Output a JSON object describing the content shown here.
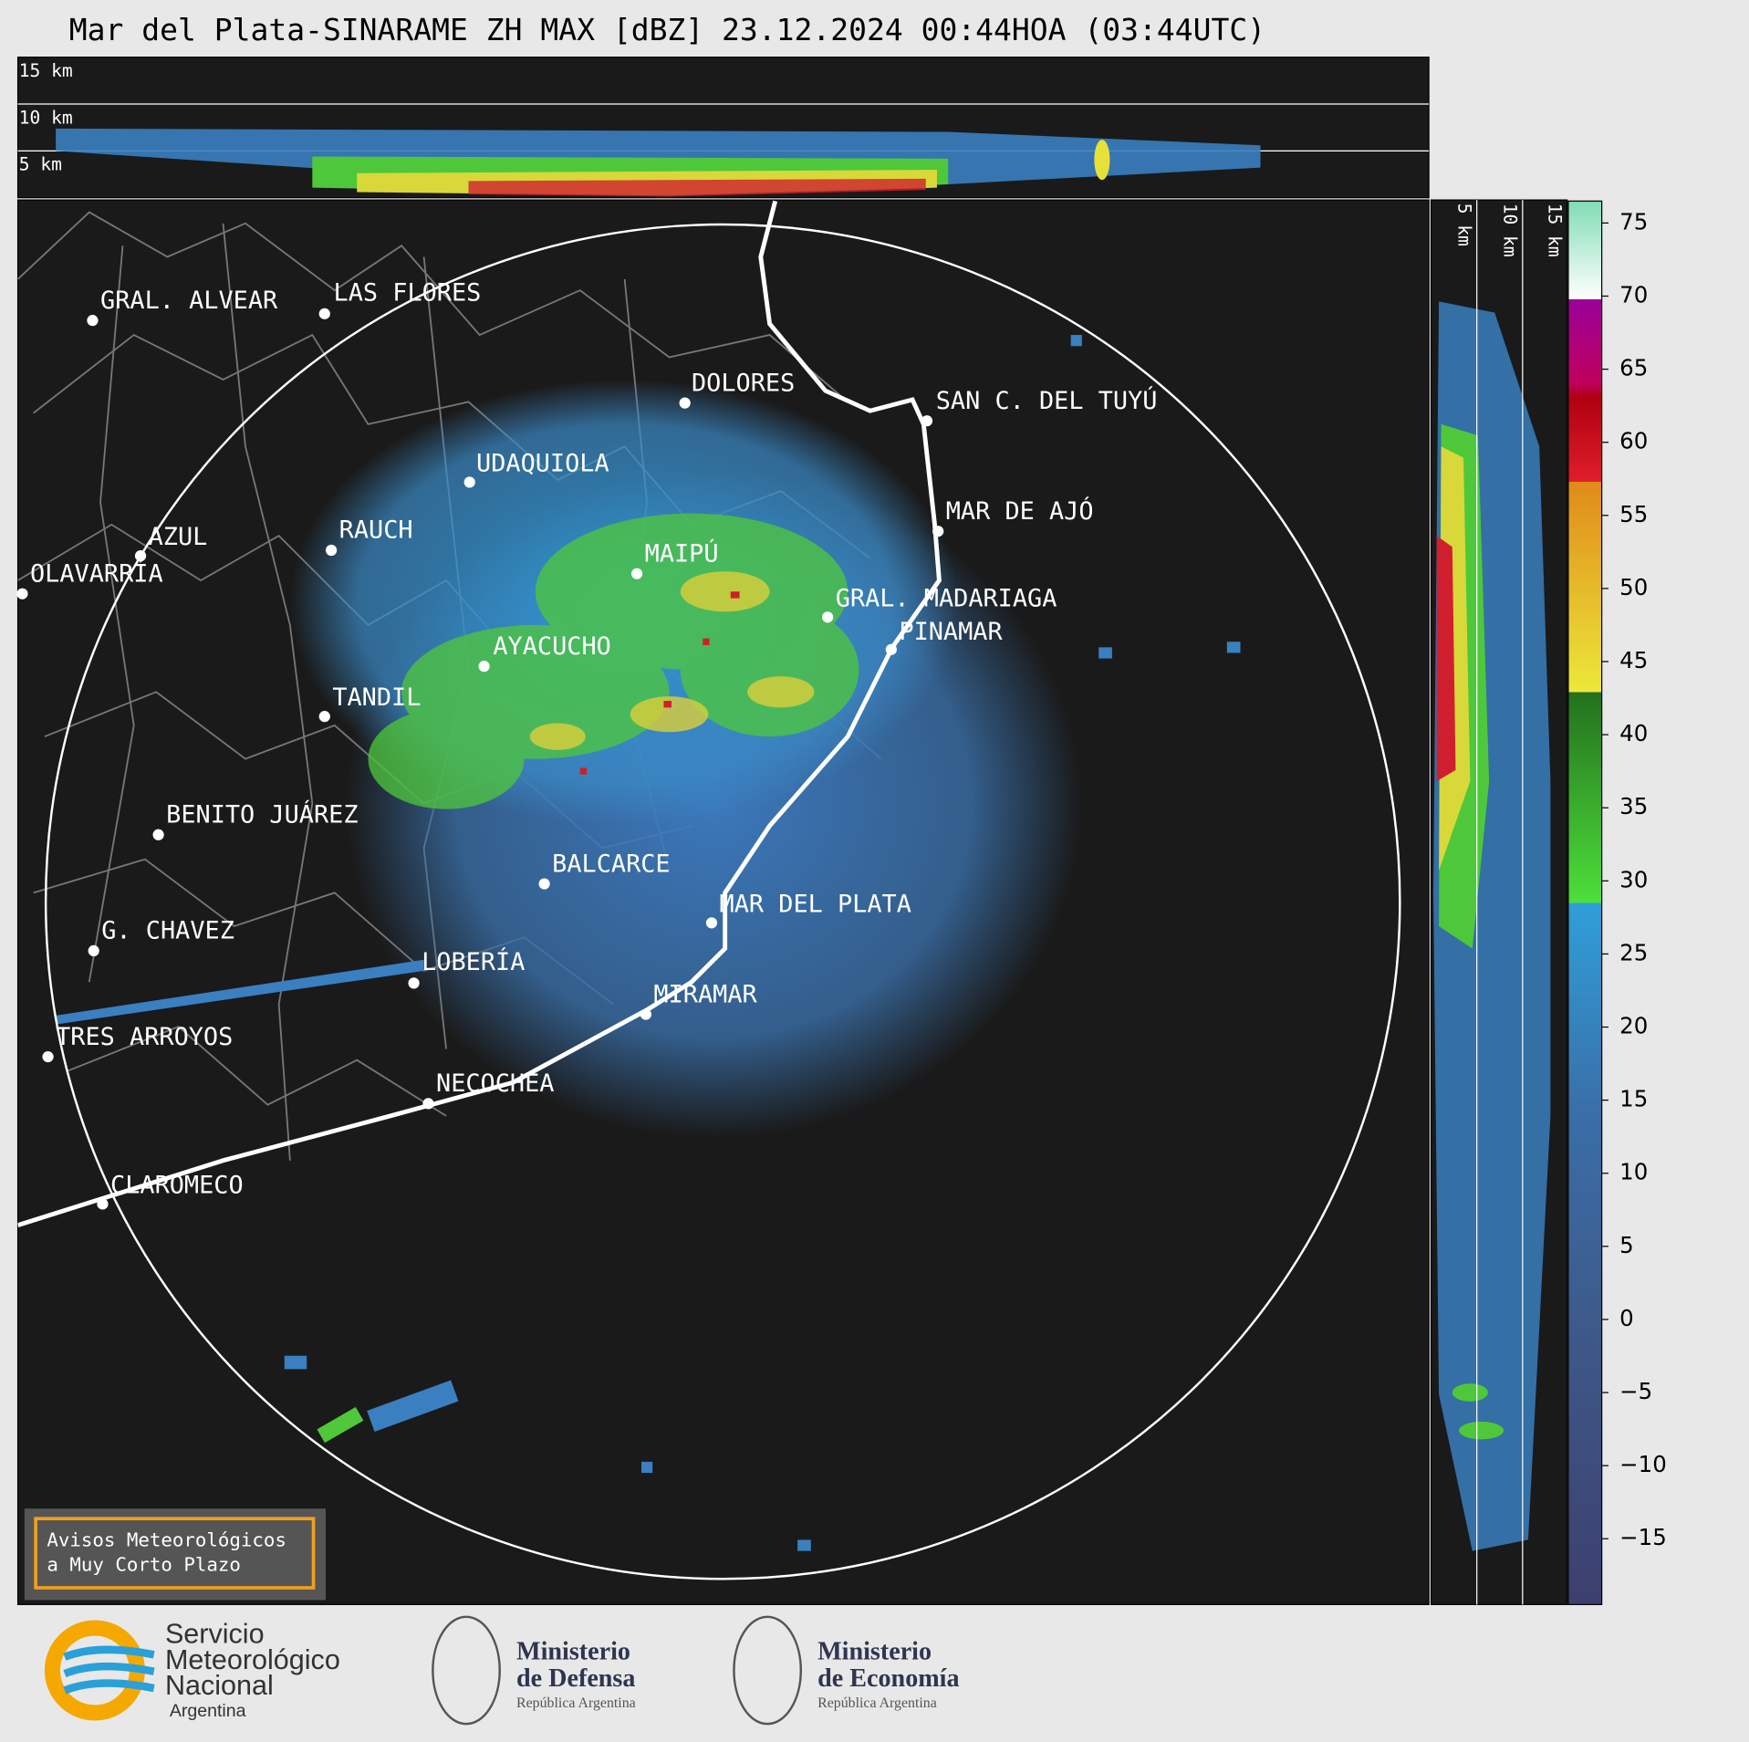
{
  "title": "Mar del Plata-SINARAME ZH MAX [dBZ] 23.12.2024 00:44HOA (03:44UTC)",
  "top_height_labels": [
    "15 km",
    "10 km",
    "5 km"
  ],
  "side_height_labels": [
    "5 km",
    "10 km",
    "15 km"
  ],
  "cities": [
    "GRAL. ALVEAR",
    "LAS FLORES",
    "DOLORES",
    "SAN C. DEL TUYÚ",
    "UDAQUIOLA",
    "MAR DE AJÓ",
    "AZUL",
    "RAUCH",
    "MAIPÚ",
    "OLAVARRÍA",
    "GRAL. MADARIAGA",
    "PINAMAR",
    "AYACUCHO",
    "TANDIL",
    "BENITO JUÁREZ",
    "BALCARCE",
    "MAR DEL PLATA",
    "G. CHAVEZ",
    "LOBERÍA",
    "MIRAMAR",
    "TRES ARROYOS",
    "NECOCHEA",
    "CLAROMECO"
  ],
  "colorbar": {
    "ylim": [
      -19.5,
      76.5
    ],
    "ticks": [
      {
        "value": -15,
        "label": "−15"
      },
      {
        "value": -10,
        "label": "−10"
      },
      {
        "value": -5,
        "label": "−5"
      },
      0,
      5,
      10,
      15,
      20,
      25,
      30,
      35,
      40,
      45,
      50,
      55,
      60,
      65,
      70,
      75
    ]
  },
  "notice": [
    "Avisos Meteorológicos",
    "a Muy Corto Plazo"
  ],
  "logos": {
    "smn": [
      "Servicio",
      "Meteorológico",
      "Nacional",
      "Argentina"
    ],
    "defensa": [
      "Ministerio",
      "de Defensa",
      "República Argentina"
    ],
    "economia": [
      "Ministerio",
      "de Economía",
      "República Argentina"
    ]
  }
}
